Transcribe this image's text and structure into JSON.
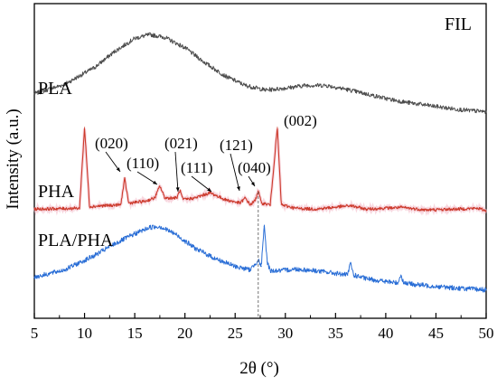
{
  "chart_data": {
    "type": "line",
    "title": "FIL",
    "xlabel": "2θ (°)",
    "ylabel": "Intensity (a.u.)",
    "xlim": [
      5,
      50
    ],
    "x_ticks": [
      5,
      10,
      15,
      20,
      25,
      30,
      35,
      40,
      45,
      50
    ],
    "y_ticks_shown": false,
    "legend": "none",
    "grid": false,
    "series": [
      {
        "name": "PLA",
        "color": "#4d4d4d",
        "x": [
          5,
          8,
          11,
          13,
          15,
          16.5,
          18,
          20,
          22,
          24,
          26,
          28,
          30,
          32,
          34,
          36,
          38,
          40,
          42,
          44,
          46,
          48,
          50
        ],
        "y": [
          0.62,
          0.82,
          1.18,
          1.52,
          1.8,
          1.88,
          1.82,
          1.6,
          1.28,
          1.0,
          0.8,
          0.7,
          0.74,
          0.8,
          0.8,
          0.72,
          0.62,
          0.52,
          0.44,
          0.38,
          0.32,
          0.27,
          0.24
        ]
      },
      {
        "name": "PHA",
        "color": "#cc3a2c",
        "x": [
          5,
          9.5,
          10,
          10.5,
          12,
          13.6,
          14,
          14.4,
          16,
          17,
          17.5,
          18,
          19.2,
          19.5,
          19.8,
          21,
          22.5,
          24,
          25.5,
          26,
          26.5,
          27,
          27.3,
          27.6,
          28.5,
          29.2,
          29.6,
          31,
          33,
          36.5,
          38,
          41.5,
          44,
          47,
          49.2,
          50
        ],
        "y": [
          0.05,
          0.06,
          1.0,
          0.08,
          0.09,
          0.1,
          0.4,
          0.12,
          0.14,
          0.18,
          0.32,
          0.18,
          0.18,
          0.27,
          0.16,
          0.18,
          0.24,
          0.16,
          0.12,
          0.18,
          0.1,
          0.15,
          0.27,
          0.12,
          0.1,
          1.0,
          0.1,
          0.06,
          0.05,
          0.09,
          0.05,
          0.07,
          0.04,
          0.05,
          0.06,
          0.03
        ]
      },
      {
        "name": "PLA/PHA",
        "color": "#2a6ed6",
        "x": [
          5,
          8,
          11,
          13,
          15,
          16.5,
          17.5,
          19,
          21,
          23,
          25,
          26.5,
          27.3,
          27.6,
          27.9,
          28.2,
          28.5,
          29.5,
          31,
          33,
          35,
          36.2,
          36.5,
          36.8,
          38,
          40,
          41.2,
          41.5,
          41.8,
          43,
          45,
          47,
          50
        ],
        "y": [
          0.55,
          0.72,
          1.05,
          1.32,
          1.55,
          1.7,
          1.72,
          1.55,
          1.22,
          0.98,
          0.8,
          0.72,
          0.95,
          0.8,
          1.72,
          0.9,
          0.7,
          0.7,
          0.74,
          0.7,
          0.64,
          0.6,
          0.88,
          0.6,
          0.52,
          0.45,
          0.42,
          0.6,
          0.42,
          0.38,
          0.34,
          0.3,
          0.26
        ]
      }
    ],
    "annotations": [
      {
        "text": "(020)",
        "x": 14.0
      },
      {
        "text": "(110)",
        "x": 17.5
      },
      {
        "text": "(021)",
        "x": 19.5
      },
      {
        "text": "(111)",
        "x": 22.5
      },
      {
        "text": "(121)",
        "x": 26.0
      },
      {
        "text": "(040)",
        "x": 27.3
      },
      {
        "text": "(002)",
        "x": 29.2
      }
    ],
    "reference_line_x": 27.3
  }
}
